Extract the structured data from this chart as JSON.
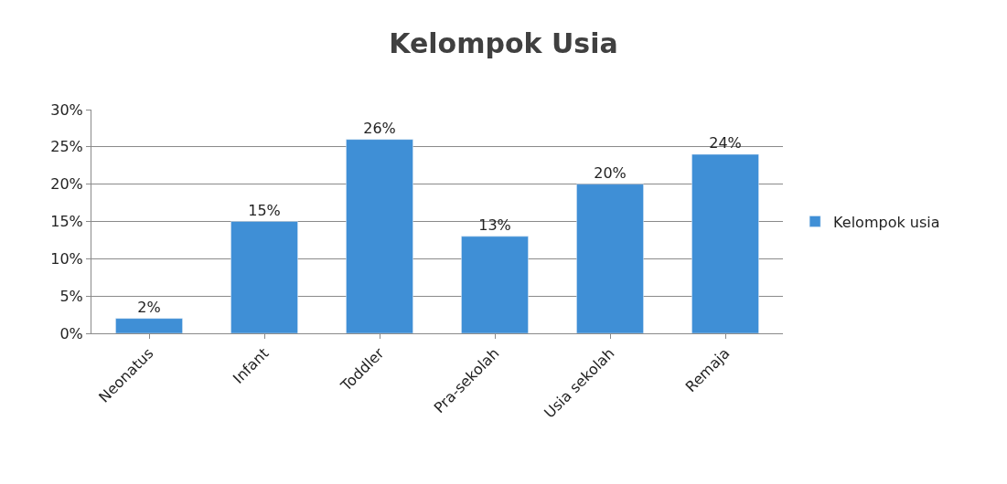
{
  "chart_data": {
    "type": "bar",
    "title": "Kelompok Usia",
    "categories": [
      "Neonatus",
      "Infant",
      "Toddler",
      "Pra-sekolah",
      "Usia sekolah",
      "Remaja"
    ],
    "series": [
      {
        "name": "Kelompok usia",
        "color": "#3f8fd6",
        "values": [
          2,
          15,
          26,
          13,
          20,
          24
        ],
        "value_labels": [
          "2%",
          "15%",
          "26%",
          "13%",
          "20%",
          "24%"
        ]
      }
    ],
    "ylim": [
      0,
      30
    ],
    "yticks": [
      {
        "value": 0,
        "label": "0%"
      },
      {
        "value": 5,
        "label": "5%"
      },
      {
        "value": 10,
        "label": "10%"
      },
      {
        "value": 15,
        "label": "15%"
      },
      {
        "value": 20,
        "label": "20%"
      },
      {
        "value": 25,
        "label": "25%"
      },
      {
        "value": 30,
        "label": "30%"
      }
    ],
    "grid": "y",
    "legend": "right"
  }
}
